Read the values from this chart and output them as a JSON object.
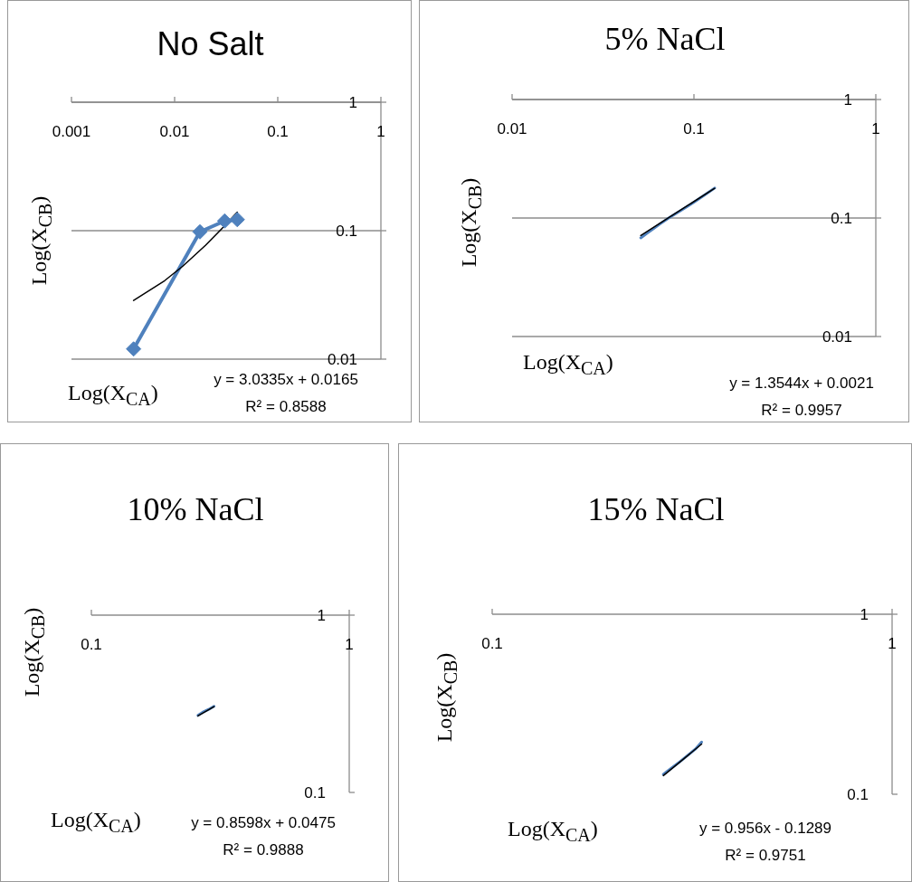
{
  "chart_data": [
    {
      "type": "line",
      "title": "No Salt",
      "xlabel": "Log(X$_{CA}$)",
      "ylabel": "Log(X$_{CB}$)",
      "log": "xy",
      "grid": "y",
      "xlim": [
        0.001,
        1
      ],
      "xticks": [
        0.001,
        0.01,
        0.1,
        1
      ],
      "ylim": [
        0.01,
        1
      ],
      "yticks": [
        0.01,
        0.1,
        1
      ],
      "series": [
        {
          "color": "#4f81bd",
          "marker": "diamond",
          "x": [
            0.004,
            0.0176,
            0.0306,
            0.0405
          ],
          "values": [
            0.012,
            0.098,
            0.119,
            0.122
          ]
        },
        {
          "type": "line",
          "color": "#000000",
          "x": [
            0.004,
            0.008,
            0.012,
            0.02,
            0.03,
            0.0405
          ],
          "values": [
            0.0286,
            0.0408,
            0.0529,
            0.0772,
            0.1075,
            0.1394
          ]
        }
      ],
      "annotations": [
        "y = 3.0335x + 0.0165",
        "R² = 0.8588"
      ]
    },
    {
      "type": "line",
      "title": "5% NaCl",
      "xlabel": "Log(X$_{CA}$)",
      "ylabel": "Log(X$_{CB}$)",
      "log": "xy",
      "grid": "y",
      "xlim": [
        0.01,
        1
      ],
      "xticks": [
        0.01,
        0.1,
        1
      ],
      "ylim": [
        0.01,
        1
      ],
      "yticks": [
        0.01,
        0.1,
        1
      ],
      "series": [
        {
          "color": "#4f81bd",
          "x": [
            0.051,
            0.055,
            0.065,
            0.0726,
            0.085,
            0.1,
            0.115,
            0.13
          ],
          "values": [
            0.068,
            0.074,
            0.089,
            0.1,
            0.116,
            0.136,
            0.157,
            0.179
          ]
        },
        {
          "type": "line",
          "color": "#000000",
          "x": [
            0.051,
            0.13
          ],
          "values": [
            0.0712,
            0.178
          ]
        }
      ],
      "annotations": [
        "y = 1.3544x + 0.0021",
        "R² = 0.9957"
      ]
    },
    {
      "type": "line",
      "title": "10% NaCl",
      "xlabel": "Log(X$_{CA}$)",
      "ylabel": "Log(X$_{CB}$)",
      "log": "xy",
      "xlim": [
        0.1,
        1
      ],
      "xticks": [
        0.1,
        1
      ],
      "ylim": [
        0.1,
        1
      ],
      "yticks": [
        0.1,
        1
      ],
      "series": [
        {
          "color": "#4f81bd",
          "x": [
            0.259,
            0.27,
            0.285,
            0.299
          ],
          "values": [
            0.272,
            0.283,
            0.294,
            0.306
          ]
        },
        {
          "type": "line",
          "color": "#000000",
          "x": [
            0.259,
            0.299
          ],
          "values": [
            0.27,
            0.305
          ]
        }
      ],
      "annotations": [
        "y = 0.8598x + 0.0475",
        "R² = 0.9888"
      ]
    },
    {
      "type": "line",
      "title": "15% NaCl",
      "xlabel": "Log(X$_{CA}$)",
      "ylabel": "Log(X$_{CB}$)",
      "log": "xy",
      "xlim": [
        0.1,
        1
      ],
      "xticks": [
        0.1,
        1
      ],
      "ylim": [
        0.1,
        1
      ],
      "yticks": [
        0.1,
        1
      ],
      "series": [
        {
          "color": "#4f81bd",
          "x": [
            0.268,
            0.28,
            0.295,
            0.31,
            0.322,
            0.334
          ],
          "values": [
            0.129,
            0.139,
            0.152,
            0.166,
            0.178,
            0.195
          ]
        },
        {
          "type": "line",
          "color": "#000000",
          "x": [
            0.268,
            0.334
          ],
          "values": [
            0.127,
            0.19
          ]
        }
      ],
      "annotations": [
        "y = 0.956x - 0.1289",
        "R² = 0.9751"
      ]
    }
  ]
}
